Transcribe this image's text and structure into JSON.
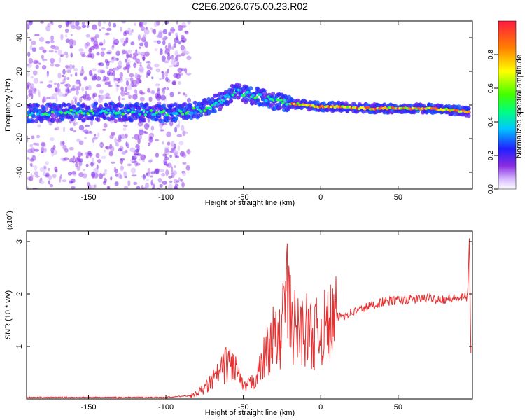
{
  "title": "C2E6.2026.075.00.23.R02",
  "colors": {
    "snr_line": "#e83030",
    "axis": "#000000",
    "background": "#ffffff"
  },
  "chart_data": [
    {
      "type": "heatmap",
      "xlabel": "Height of straight line (km)",
      "ylabel": "Frequency (Hz)",
      "xlim": [
        -190,
        98
      ],
      "ylim": [
        -50,
        50
      ],
      "x_ticks": [
        -150,
        -100,
        -50,
        0,
        50
      ],
      "y_ticks": [
        -40,
        -20,
        0,
        20,
        40
      ],
      "colorbar": {
        "label": "Normalized spectral amplitude",
        "range": [
          0.0,
          1.0
        ],
        "ticks": [
          "0.0",
          "0.2",
          "0.4",
          "0.6",
          "0.8"
        ],
        "colormap": "rainbow"
      },
      "ridge": {
        "x": [
          -190,
          -160,
          -130,
          -100,
          -85,
          -75,
          -65,
          -55,
          -45,
          -40,
          -35,
          -30,
          -25,
          -20,
          -10,
          0,
          10,
          30,
          50,
          70,
          85,
          95
        ],
        "y": [
          -5,
          -4,
          -4,
          -5,
          -4,
          -2,
          2,
          8,
          6,
          5,
          4,
          2,
          2,
          1,
          0,
          -1,
          -1,
          -2,
          -2,
          -2,
          -3,
          -4
        ]
      }
    },
    {
      "type": "line",
      "xlabel": "Height of straight line (km)",
      "ylabel": "SNR (10 * v/v)",
      "y_scale_label": "(x10",
      "y_scale_exponent": "4",
      "y_scale_close": ")",
      "xlim": [
        -190,
        98
      ],
      "ylim": [
        0,
        3.2
      ],
      "x_ticks": [
        -150,
        -100,
        -50,
        0,
        50
      ],
      "y_ticks": [
        1,
        2,
        3
      ],
      "series": [
        {
          "x": [
            -190,
            -150,
            -100,
            -85,
            -80,
            -75,
            -70,
            -65,
            -60,
            -55,
            -50,
            -45,
            -40,
            -35,
            -30,
            -27,
            -25,
            -22,
            -20,
            -18,
            -15,
            -10,
            -5,
            0,
            5,
            10,
            20,
            30,
            40,
            50,
            60,
            70,
            80,
            90,
            95,
            96,
            97
          ],
          "values": [
            0.02,
            0.02,
            0.02,
            0.05,
            0.1,
            0.2,
            0.35,
            0.5,
            0.7,
            0.6,
            0.2,
            0.3,
            0.5,
            0.9,
            1.2,
            1.0,
            1.5,
            2.1,
            1.6,
            1.4,
            1.3,
            1.35,
            1.2,
            1.3,
            1.4,
            1.55,
            1.65,
            1.75,
            1.85,
            1.88,
            1.9,
            1.92,
            1.9,
            1.92,
            1.95,
            3.2,
            0.8
          ]
        }
      ]
    }
  ]
}
